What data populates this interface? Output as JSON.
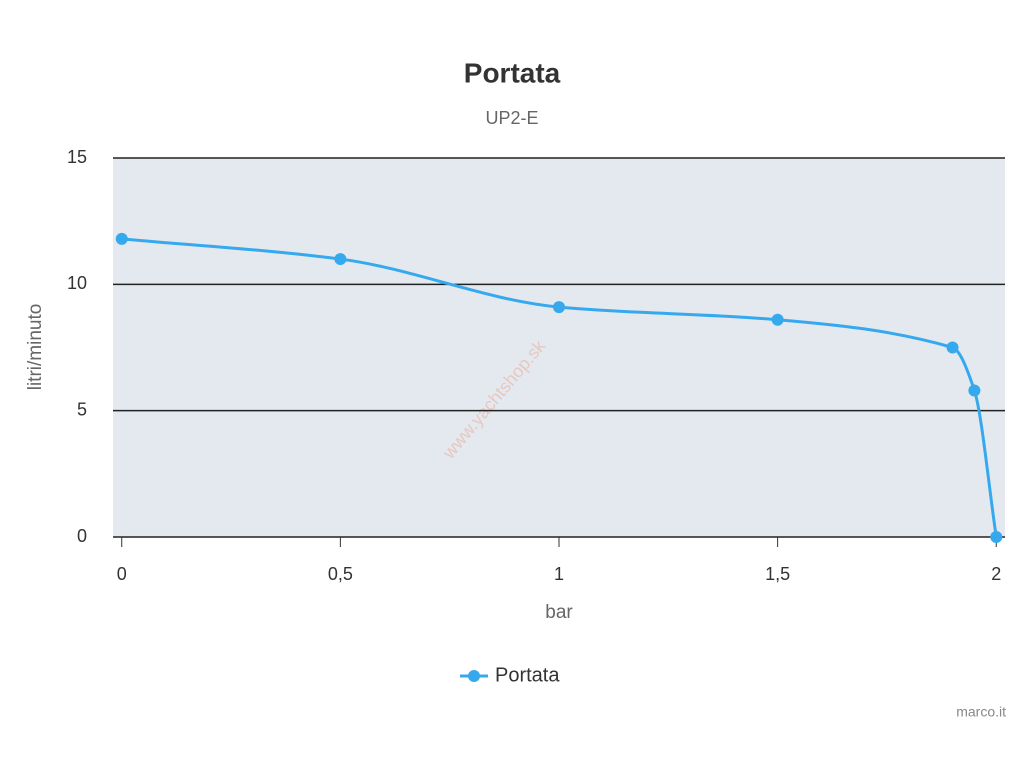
{
  "chart_data": {
    "type": "line",
    "title": "Portata",
    "subtitle": "UP2-E",
    "x_label": "bar",
    "y_label": "litri/minuto",
    "series": [
      {
        "name": "Portata",
        "color": "#36a9ee",
        "x": [
          0,
          0.5,
          1,
          1.5,
          1.9,
          1.95,
          2
        ],
        "values": [
          11.8,
          11.0,
          9.1,
          8.6,
          7.5,
          5.8,
          0
        ]
      }
    ],
    "xlim": [
      -0.02,
      2.02
    ],
    "xticks": [
      0,
      {
        "value": 0.5,
        "label": "0,5"
      },
      1,
      {
        "value": 1.5,
        "label": "1,5"
      },
      2
    ],
    "ylim": [
      0,
      15
    ],
    "yticks": [
      0,
      5,
      10,
      15
    ],
    "grid": true,
    "plot_background": "#e3e9ef",
    "legend": "bottom",
    "watermark": "www.yachtshop.sk",
    "credit": "marco.it"
  }
}
